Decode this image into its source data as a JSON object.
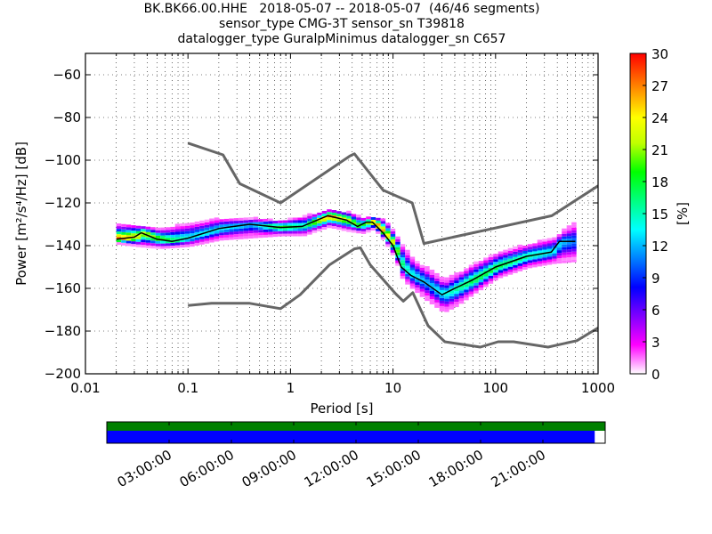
{
  "title_lines": [
    "BK.BK66.00.HHE   2018-05-07 -- 2018-05-07  (46/46 segments)",
    "sensor_type CMG-3T sensor_sn T39818",
    "datalogger_type GuralpMinimus datalogger_sn C657"
  ],
  "chart_data": {
    "type": "heatmap",
    "subtype": "probabilistic power spectral density",
    "title": "BK.BK66.00.HHE   2018-05-07 -- 2018-05-07  (46/46 segments)",
    "subtitle": [
      "sensor_type CMG-3T sensor_sn T39818",
      "datalogger_type GuralpMinimus datalogger_sn C657"
    ],
    "xlabel": "Period [s]",
    "ylabel": "Power [m²/s⁴/Hz] [dB]",
    "xscale": "log",
    "xlim": [
      0.01,
      1000
    ],
    "ylim": [
      -200,
      -50
    ],
    "xticks": [
      0.01,
      0.1,
      1,
      10,
      100,
      1000
    ],
    "xtick_labels": [
      "0.01",
      "0.1",
      "1",
      "10",
      "100",
      "1000"
    ],
    "yticks": [
      -200,
      -180,
      -160,
      -140,
      -120,
      -100,
      -80,
      -60
    ],
    "ytick_labels": [
      "−200",
      "−180",
      "−160",
      "−140",
      "−120",
      "−100",
      "−80",
      "−60"
    ],
    "grid": true,
    "colorbar": {
      "label": "[%]",
      "range": [
        0,
        30
      ],
      "ticks": [
        0,
        3,
        6,
        9,
        12,
        15,
        18,
        21,
        24,
        27,
        30
      ],
      "colormap": [
        "#ffffff",
        "#ff00ff",
        "#8000ff",
        "#0000ff",
        "#0080ff",
        "#00ffff",
        "#00ff80",
        "#00ff00",
        "#c0ff00",
        "#ffff00",
        "#ff8000",
        "#ff0000"
      ]
    },
    "series": [
      {
        "name": "New High Noise Model",
        "color": "#666666",
        "x": [
          0.1,
          0.22,
          0.32,
          0.8,
          3.8,
          4.2,
          8,
          15.4,
          20,
          354,
          1000
        ],
        "y": [
          -92,
          -97.5,
          -111,
          -120,
          -98,
          -97,
          -114,
          -120,
          -139,
          -126,
          -112
        ]
      },
      {
        "name": "New Low Noise Model",
        "color": "#666666",
        "x": [
          0.1,
          0.17,
          0.4,
          0.8,
          1.24,
          2.4,
          4.2,
          4.8,
          6,
          10.6,
          12.6,
          15.6,
          22,
          32,
          71,
          106,
          150,
          325,
          620,
          1000
        ],
        "y": [
          -168,
          -167,
          -167,
          -169.5,
          -163,
          -149,
          -141.5,
          -141,
          -149,
          -162.5,
          -166,
          -162,
          -177.5,
          -185,
          -187.5,
          -185,
          -185,
          -187.5,
          -184.5,
          -178.5
        ]
      },
      {
        "name": "Mode",
        "color": "#000000",
        "x": [
          0.02,
          0.03,
          0.035,
          0.05,
          0.07,
          0.1,
          0.2,
          0.4,
          0.8,
          1.3,
          2.3,
          3.5,
          4.5,
          5.5,
          6.3,
          8,
          10,
          12,
          15,
          20,
          30,
          40,
          60,
          100,
          200,
          350,
          420,
          600
        ],
        "y": [
          -137,
          -136,
          -134,
          -137,
          -138,
          -136.5,
          -132,
          -130,
          -131.5,
          -131,
          -126,
          -128,
          -131,
          -129,
          -129,
          -134,
          -140,
          -150,
          -154,
          -157,
          -163,
          -160,
          -156,
          -150,
          -145,
          -143,
          -138,
          -138
        ]
      }
    ],
    "density_band": {
      "period": [
        0.02,
        0.03,
        0.05,
        0.1,
        0.2,
        0.4,
        0.8,
        1.3,
        2.3,
        3.5,
        5,
        6.3,
        8,
        10,
        12,
        15,
        20,
        30,
        40,
        60,
        100,
        200,
        350,
        600
      ],
      "low": [
        -139,
        -140,
        -141,
        -140,
        -137,
        -136,
        -135,
        -135,
        -131,
        -133,
        -134,
        -132,
        -138,
        -146,
        -156,
        -160,
        -165,
        -171,
        -168,
        -162,
        -155,
        -150,
        -148,
        -147
      ],
      "high": [
        -130,
        -130,
        -132,
        -129,
        -127,
        -127,
        -128,
        -126,
        -123,
        -124,
        -127,
        -126,
        -128,
        -134,
        -140,
        -146,
        -150,
        -156,
        -153,
        -148,
        -143,
        -139,
        -136,
        -128
      ],
      "peak_percent": [
        28,
        24,
        20,
        14,
        14,
        12,
        20,
        16,
        28,
        22,
        18,
        28,
        26,
        22,
        16,
        14,
        12,
        14,
        16,
        18,
        18,
        16,
        14,
        10
      ]
    }
  },
  "timeline": {
    "tick_labels": [
      "03:00:00",
      "06:00:00",
      "09:00:00",
      "12:00:00",
      "15:00:00",
      "18:00:00",
      "21:00:00"
    ],
    "data_coverage_fraction": 1.0,
    "psd_coverage_fraction": 0.979,
    "colors": {
      "data": "#008000",
      "psd": "#0000ff"
    }
  }
}
